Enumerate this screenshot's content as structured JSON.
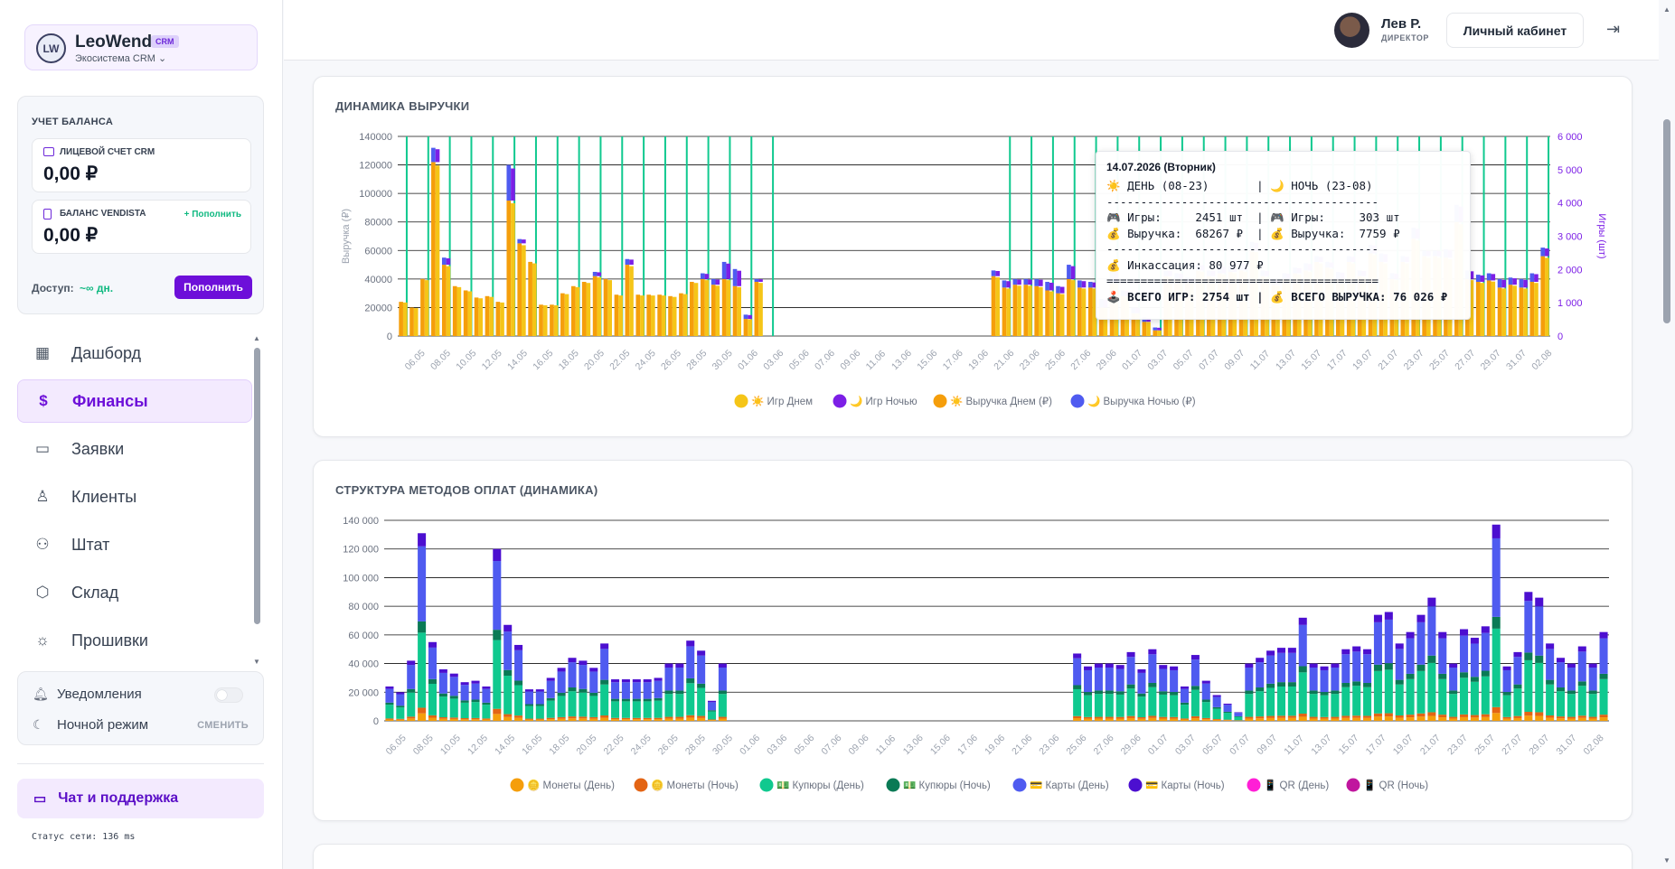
{
  "brand": {
    "name": "LeoWend",
    "badge": "CRM",
    "subtitle": "Экосистема CRM ⌄"
  },
  "balance": {
    "title": "УЧЕТ БАЛАНСА",
    "crm_account": {
      "label": "ЛИЦЕВОЙ СЧЕТ CRM",
      "value": "0,00 ₽"
    },
    "vendista": {
      "label": "БАЛАНС VENDISTA",
      "value": "0,00 ₽",
      "topup_link": "+ Пополнить"
    },
    "access_label": "Доступ:",
    "access_value": "~∞ дн.",
    "topup_button": "Пополнить"
  },
  "nav": [
    {
      "label": "Дашборд",
      "icon": "layout-icon",
      "glyph": "▦",
      "active": false
    },
    {
      "label": "Финансы",
      "icon": "dollar-icon",
      "glyph": "$",
      "active": true
    },
    {
      "label": "Заявки",
      "icon": "file-icon",
      "glyph": "▭",
      "active": false
    },
    {
      "label": "Клиенты",
      "icon": "user-icon",
      "glyph": "♙",
      "active": false
    },
    {
      "label": "Штат",
      "icon": "users-icon",
      "glyph": "⚇",
      "active": false
    },
    {
      "label": "Склад",
      "icon": "box-icon",
      "glyph": "⬡",
      "active": false
    },
    {
      "label": "Прошивки",
      "icon": "sun-icon",
      "glyph": "☼",
      "active": false
    }
  ],
  "settings": {
    "notifications": "Уведомления",
    "night_mode": "Ночной режим",
    "switch_label": "СМЕНИТЬ"
  },
  "chat": {
    "label": "Чат и поддержка"
  },
  "network_status": "Статус сети: 136 ms",
  "header": {
    "user_name": "Лев Р.",
    "user_role": "ДИРЕКТОР",
    "cabinet_button": "Личный кабинет"
  },
  "colors": {
    "accent": "#6d0fd9",
    "games_day": "#f5c518",
    "games_night": "#7c1fe6",
    "revenue_day": "#f59e0b",
    "revenue_night": "#4f5bf0",
    "coins_day": "#f59e0b",
    "coins_night": "#e36414",
    "notes_day": "#10c98f",
    "notes_night": "#0a7a55",
    "cards_day": "#4f5bf0",
    "cards_night": "#4c0fd0",
    "qr_day": "#ff1fd6",
    "qr_night": "#c0169e"
  },
  "chart_data": [
    {
      "type": "bar",
      "title": "ДИНАМИКА ВЫРУЧКИ",
      "ylabel": "Выручка (₽)",
      "y2label": "Игры (шт)",
      "ylim": [
        0,
        140000
      ],
      "y2lim": [
        0,
        6000
      ],
      "y_ticks": [
        "0",
        "20000",
        "40000",
        "60000",
        "80000",
        "100000",
        "120000",
        "140000"
      ],
      "y2_ticks": [
        "0",
        "1 000",
        "2 000",
        "3 000",
        "4 000",
        "5 000",
        "6 000"
      ],
      "x_ticks": [
        "06.05",
        "08.05",
        "10.05",
        "12.05",
        "14.05",
        "16.05",
        "18.05",
        "20.05",
        "22.05",
        "24.05",
        "26.05",
        "28.05",
        "30.05",
        "01.06",
        "03.06",
        "05.06",
        "07.06",
        "09.06",
        "11.06",
        "13.06",
        "15.06",
        "17.06",
        "19.06",
        "21.06",
        "23.06",
        "25.06",
        "27.06",
        "29.06",
        "01.07",
        "03.07",
        "05.07",
        "07.07",
        "09.07",
        "11.07",
        "13.07",
        "15.07",
        "17.07",
        "19.07",
        "21.07",
        "23.07",
        "25.07",
        "27.07",
        "29.07",
        "31.07",
        "02.08"
      ],
      "legend": [
        "☀️ Игр Днем",
        "🌙 Игр Ночью",
        "☀️ Выручка Днем (₽)",
        "🌙 Выручка Ночью (₽)"
      ],
      "revenue_day": [
        24000,
        20000,
        40000,
        122000,
        50000,
        35000,
        32000,
        27000,
        28000,
        24000,
        95000,
        65000,
        52000,
        22000,
        22000,
        30000,
        35000,
        38000,
        42000,
        40000,
        29000,
        50000,
        29000,
        29000,
        29000,
        28000,
        30000,
        38000,
        40000,
        36000,
        40000,
        35000,
        12000,
        38000,
        0,
        0,
        0,
        0,
        0,
        0,
        0,
        0,
        0,
        0,
        0,
        0,
        0,
        0,
        0,
        0,
        0,
        0,
        0,
        0,
        0,
        42000,
        34000,
        36000,
        36000,
        35000,
        32000,
        30000,
        40000,
        34000,
        34000,
        20000,
        38000,
        28000,
        16000,
        10000,
        4000,
        42000,
        40000,
        38000,
        46000,
        42000,
        44000,
        45000,
        46000,
        60000,
        42000,
        36000,
        40000,
        44000,
        46000,
        52000,
        48000,
        40000,
        52000,
        42000,
        58000,
        52000,
        40000,
        52000,
        68267,
        56000,
        56000,
        55000,
        80000,
        40000,
        38000,
        39000,
        34000,
        36000,
        34000,
        38000,
        56000
      ],
      "revenue_night": [
        0,
        0,
        0,
        10000,
        5000,
        0,
        0,
        0,
        0,
        0,
        25000,
        3000,
        0,
        0,
        0,
        0,
        0,
        0,
        3000,
        0,
        0,
        4000,
        0,
        0,
        0,
        0,
        0,
        0,
        4000,
        4000,
        12000,
        12000,
        3000,
        2000,
        0,
        0,
        0,
        0,
        0,
        0,
        0,
        0,
        0,
        0,
        0,
        0,
        0,
        0,
        0,
        0,
        0,
        0,
        0,
        0,
        0,
        4000,
        5000,
        4000,
        4000,
        5000,
        6000,
        5000,
        10000,
        5000,
        4000,
        6000,
        8000,
        4000,
        4000,
        3000,
        2000,
        4000,
        4000,
        3000,
        4000,
        4000,
        5000,
        4000,
        5000,
        6000,
        4000,
        3000,
        4000,
        4000,
        5000,
        4000,
        4000,
        5000,
        4000,
        4000,
        6000,
        6000,
        4000,
        4000,
        7759,
        4000,
        4000,
        6000,
        12000,
        6000,
        5000,
        5000,
        6000,
        5000,
        6000,
        6000,
        6000
      ],
      "tooltip": {
        "date": "14.07.2026 (Вторник)",
        "lines": [
          "☀️ ДЕНЬ (08-23)       | 🌙 НОЧЬ (23-08)",
          "----------------------------------------",
          "🎮 Игры:     2451 шт  | 🎮 Игры:     303 шт",
          "💰 Выручка:  68267 ₽  | 💰 Выручка:  7759 ₽",
          "----------------------------------------",
          "💰 Инкассация: 80 977 ₽",
          "========================================",
          "🕹️ ВСЕГО ИГР: 2754 шт | 💰 ВСЕГО ВЫРУЧКА: 76 026 ₽"
        ]
      }
    },
    {
      "type": "bar",
      "title": "СТРУКТУРА МЕТОДОВ ОПЛАТ (ДИНАМИКА)",
      "ylim": [
        0,
        140000
      ],
      "y_ticks": [
        "0",
        "20 000",
        "40 000",
        "60 000",
        "80 000",
        "100 000",
        "120 000",
        "140 000"
      ],
      "x_ticks": [
        "06.05",
        "08.05",
        "10.05",
        "12.05",
        "14.05",
        "16.05",
        "18.05",
        "20.05",
        "22.05",
        "24.05",
        "26.05",
        "28.05",
        "30.05",
        "01.06",
        "03.06",
        "05.06",
        "07.06",
        "09.06",
        "11.06",
        "13.06",
        "15.06",
        "17.06",
        "19.06",
        "21.06",
        "23.06",
        "25.06",
        "27.06",
        "29.06",
        "01.07",
        "03.07",
        "05.07",
        "07.07",
        "09.07",
        "11.07",
        "13.07",
        "15.07",
        "17.07",
        "19.07",
        "21.07",
        "23.07",
        "25.07",
        "27.07",
        "29.07",
        "31.07",
        "02.08"
      ],
      "legend": [
        "🪙 Монеты (День)",
        "🪙 Монеты (Ночь)",
        "💵 Купюры (День)",
        "💵 Купюры (Ночь)",
        "💳 Карты (День)",
        "💳 Карты (Ночь)",
        "📱 QR (День)",
        "📱 QR (Ночь)"
      ],
      "totals": [
        24000,
        20000,
        42000,
        131000,
        55000,
        36000,
        33000,
        27000,
        28000,
        24000,
        120000,
        67000,
        53000,
        22000,
        22000,
        30000,
        37000,
        44000,
        42000,
        37000,
        54000,
        29000,
        29000,
        29000,
        29000,
        30000,
        40000,
        40000,
        56000,
        49000,
        14000,
        40000,
        0,
        0,
        0,
        0,
        0,
        0,
        0,
        0,
        0,
        0,
        0,
        0,
        0,
        0,
        0,
        0,
        0,
        0,
        0,
        0,
        0,
        0,
        0,
        0,
        0,
        0,
        0,
        0,
        0,
        0,
        0,
        0,
        47000,
        38000,
        40000,
        40000,
        39000,
        48000,
        36000,
        50000,
        39000,
        38000,
        24000,
        46000,
        28000,
        18000,
        12000,
        6000,
        40000,
        44000,
        49000,
        51000,
        51000,
        72000,
        40000,
        38000,
        40000,
        50000,
        52000,
        50000,
        74000,
        76000,
        54000,
        62000,
        74000,
        86000,
        62000,
        40000,
        64000,
        58000,
        66000,
        137000,
        38000,
        48000,
        90000,
        86000,
        54000,
        44000,
        40000,
        52000,
        40000,
        62000
      ]
    }
  ]
}
